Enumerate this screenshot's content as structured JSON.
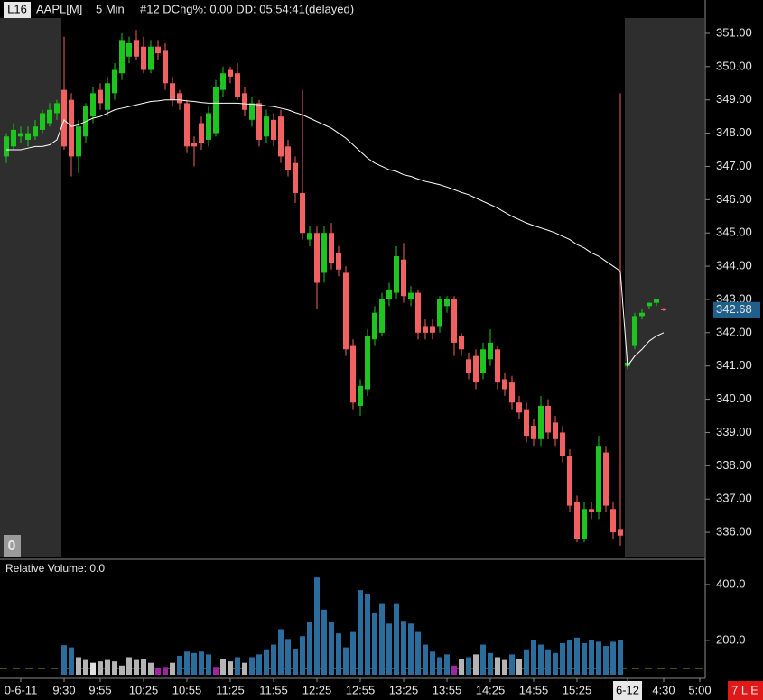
{
  "header": {
    "badge": "L16",
    "symbol": "AAPL[M]",
    "interval": "5 Min",
    "info": "#12 DChg%: 0.00 DD: 05:54:41(delayed)"
  },
  "footer": {
    "left_badge": "0",
    "right_badge": "7 L E"
  },
  "chart_data": {
    "type": "candlestick",
    "categories": [
      null,
      null,
      "0-6-11",
      null,
      null,
      null,
      null,
      null,
      "9:30",
      null,
      null,
      null,
      null,
      "9:55",
      null,
      null,
      null,
      null,
      null,
      "10:25",
      null,
      null,
      null,
      null,
      null,
      "10:55",
      null,
      null,
      null,
      null,
      null,
      "11:25",
      null,
      null,
      null,
      null,
      null,
      "11:55",
      null,
      null,
      null,
      null,
      null,
      "12:25",
      null,
      null,
      null,
      null,
      null,
      "12:55",
      null,
      null,
      null,
      null,
      null,
      "13:25",
      null,
      null,
      null,
      null,
      null,
      "13:55",
      null,
      null,
      null,
      null,
      null,
      "14:25",
      null,
      null,
      null,
      null,
      null,
      "14:55",
      null,
      null,
      null,
      null,
      null,
      "15:25",
      null,
      null,
      null,
      null,
      null,
      null,
      "6-12",
      null,
      null,
      null,
      null,
      "4:30",
      null,
      null,
      null,
      null,
      "5:00"
    ],
    "ohlc": [
      [
        347.3,
        348.0,
        347.1,
        347.9
      ],
      [
        347.6,
        348.3,
        347.5,
        348.1
      ],
      [
        347.9,
        348.2,
        347.7,
        348.0
      ],
      [
        347.8,
        348.2,
        347.6,
        348.0
      ],
      [
        347.9,
        348.4,
        347.8,
        348.2
      ],
      [
        348.1,
        348.7,
        348.0,
        348.6
      ],
      [
        348.3,
        348.9,
        348.2,
        348.7
      ],
      [
        348.6,
        349.0,
        348.4,
        348.9
      ],
      [
        349.3,
        350.9,
        347.5,
        347.6
      ],
      [
        349.0,
        349.2,
        346.7,
        347.3
      ],
      [
        347.3,
        348.4,
        346.8,
        348.2
      ],
      [
        347.9,
        348.9,
        347.7,
        348.8
      ],
      [
        348.5,
        349.4,
        348.3,
        349.2
      ],
      [
        349.3,
        349.5,
        348.7,
        348.9
      ],
      [
        348.7,
        349.7,
        348.5,
        349.5
      ],
      [
        349.2,
        350.1,
        349.0,
        349.9
      ],
      [
        349.8,
        351.0,
        349.6,
        350.8
      ],
      [
        350.3,
        350.9,
        350.1,
        350.7
      ],
      [
        350.8,
        351.1,
        350.2,
        350.3
      ],
      [
        350.6,
        350.9,
        349.8,
        349.9
      ],
      [
        349.9,
        350.8,
        349.8,
        350.6
      ],
      [
        350.6,
        350.8,
        350.2,
        350.4
      ],
      [
        350.5,
        350.7,
        349.3,
        349.5
      ],
      [
        349.5,
        349.7,
        348.8,
        349.0
      ],
      [
        349.2,
        349.3,
        348.7,
        348.9
      ],
      [
        348.9,
        349.0,
        347.4,
        347.6
      ],
      [
        347.7,
        347.9,
        347.0,
        347.6
      ],
      [
        348.3,
        348.5,
        347.5,
        347.7
      ],
      [
        347.8,
        348.8,
        347.6,
        348.6
      ],
      [
        348.0,
        349.6,
        347.9,
        349.4
      ],
      [
        349.3,
        350.0,
        349.1,
        349.8
      ],
      [
        349.9,
        350.0,
        349.5,
        349.7
      ],
      [
        349.8,
        350.1,
        349.0,
        349.1
      ],
      [
        349.2,
        349.4,
        348.5,
        348.7
      ],
      [
        348.4,
        349.1,
        348.2,
        348.9
      ],
      [
        348.9,
        349.0,
        347.6,
        347.8
      ],
      [
        347.9,
        348.7,
        347.7,
        348.5
      ],
      [
        348.4,
        348.6,
        347.6,
        347.8
      ],
      [
        348.5,
        348.7,
        347.1,
        347.3
      ],
      [
        347.6,
        347.8,
        346.7,
        346.9
      ],
      [
        347.1,
        347.3,
        345.9,
        346.2
      ],
      [
        346.2,
        349.3,
        344.8,
        345.0
      ],
      [
        344.8,
        345.2,
        344.6,
        345.0
      ],
      [
        345.0,
        345.2,
        342.7,
        343.5
      ],
      [
        343.8,
        345.2,
        343.5,
        345.0
      ],
      [
        345.0,
        345.3,
        343.9,
        344.1
      ],
      [
        344.4,
        344.6,
        343.7,
        343.9
      ],
      [
        343.8,
        344.0,
        341.3,
        341.5
      ],
      [
        341.6,
        341.8,
        339.7,
        339.9
      ],
      [
        339.8,
        340.6,
        339.5,
        340.4
      ],
      [
        340.3,
        342.1,
        340.1,
        341.9
      ],
      [
        341.8,
        342.8,
        341.6,
        342.6
      ],
      [
        342.0,
        343.2,
        341.9,
        343.0
      ],
      [
        343.0,
        343.5,
        342.8,
        343.3
      ],
      [
        343.2,
        344.6,
        343.0,
        344.3
      ],
      [
        344.2,
        344.7,
        342.9,
        343.1
      ],
      [
        343.0,
        343.4,
        342.8,
        343.2
      ],
      [
        343.2,
        343.3,
        341.8,
        342.0
      ],
      [
        342.2,
        342.4,
        341.8,
        342.0
      ],
      [
        342.2,
        342.4,
        341.8,
        342.0
      ],
      [
        342.2,
        343.1,
        342.0,
        343.0
      ],
      [
        342.8,
        343.1,
        342.6,
        343.0
      ],
      [
        343.0,
        343.1,
        341.3,
        341.7
      ],
      [
        341.9,
        342.0,
        341.3,
        341.5
      ],
      [
        341.2,
        341.4,
        340.6,
        340.8
      ],
      [
        341.3,
        341.5,
        340.3,
        340.5
      ],
      [
        340.8,
        341.7,
        340.6,
        341.5
      ],
      [
        341.2,
        342.1,
        341.0,
        341.7
      ],
      [
        341.5,
        341.6,
        340.3,
        340.5
      ],
      [
        340.6,
        340.8,
        340.1,
        340.3
      ],
      [
        340.5,
        340.7,
        339.7,
        339.9
      ],
      [
        339.9,
        340.1,
        339.4,
        339.6
      ],
      [
        339.7,
        339.9,
        338.7,
        338.9
      ],
      [
        339.2,
        339.4,
        338.6,
        338.8
      ],
      [
        338.8,
        340.1,
        338.6,
        339.8
      ],
      [
        339.8,
        340.0,
        338.8,
        339.0
      ],
      [
        339.3,
        339.5,
        338.6,
        338.8
      ],
      [
        339.0,
        339.2,
        338.1,
        338.3
      ],
      [
        338.3,
        338.5,
        336.6,
        336.8
      ],
      [
        336.9,
        337.1,
        335.7,
        335.8
      ],
      [
        335.8,
        336.9,
        335.7,
        336.7
      ],
      [
        336.7,
        336.9,
        336.4,
        336.6
      ],
      [
        336.6,
        338.9,
        336.4,
        338.6
      ],
      [
        338.4,
        338.6,
        336.6,
        336.8
      ],
      [
        336.7,
        336.9,
        335.8,
        336.0
      ],
      [
        336.1,
        349.2,
        335.6,
        335.9
      ],
      [
        341.0,
        341.2,
        340.9,
        341.1
      ],
      [
        341.6,
        342.6,
        341.5,
        342.5
      ],
      [
        342.5,
        342.7,
        342.4,
        342.6
      ],
      [
        342.8,
        342.9,
        342.7,
        342.9
      ],
      [
        342.9,
        343.0,
        342.8,
        343.0
      ],
      [
        342.7,
        342.75,
        342.65,
        342.68
      ],
      null,
      null,
      null,
      null,
      null
    ],
    "up_color": "#1ec51e",
    "down_color": "#f26161",
    "ylim": [
      335.27,
      351.46
    ],
    "yticks": [
      {
        "value": 336,
        "label": "336.00"
      },
      {
        "value": 337,
        "label": "337.00"
      },
      {
        "value": 338,
        "label": "338.00"
      },
      {
        "value": 339,
        "label": "339.00"
      },
      {
        "value": 340,
        "label": "340.00"
      },
      {
        "value": 341,
        "label": "341.00"
      },
      {
        "value": 342,
        "label": "342.00"
      },
      {
        "value": 343,
        "label": "343.00"
      },
      {
        "value": 344,
        "label": "344.00"
      },
      {
        "value": 345,
        "label": "345.00"
      },
      {
        "value": 346,
        "label": "346.00"
      },
      {
        "value": 347,
        "label": "347.00"
      },
      {
        "value": 348,
        "label": "348.00"
      },
      {
        "value": 349,
        "label": "349.00"
      },
      {
        "value": 350,
        "label": "350.00"
      },
      {
        "value": 351,
        "label": "351.00"
      }
    ],
    "last_price": 342.68,
    "last_price_color": "#1f5f8a",
    "average": {
      "color": "#ffffff",
      "values": [
        347.5,
        347.5,
        347.5,
        347.55,
        347.6,
        347.6,
        347.65,
        347.8,
        348.4,
        348.2,
        348.25,
        348.35,
        348.45,
        348.5,
        348.6,
        348.7,
        348.75,
        348.8,
        348.85,
        348.9,
        348.95,
        348.97,
        349.0,
        349.0,
        349.0,
        348.97,
        348.95,
        348.92,
        348.9,
        348.9,
        348.9,
        348.9,
        348.9,
        348.88,
        348.87,
        348.85,
        348.82,
        348.8,
        348.75,
        348.7,
        348.62,
        348.55,
        348.45,
        348.35,
        348.25,
        348.15,
        348.0,
        347.85,
        347.65,
        347.45,
        347.25,
        347.1,
        347.0,
        346.9,
        346.85,
        346.75,
        346.7,
        346.62,
        346.55,
        346.5,
        346.45,
        346.38,
        346.3,
        346.22,
        346.15,
        346.05,
        345.95,
        345.85,
        345.75,
        345.62,
        345.5,
        345.4,
        345.3,
        345.22,
        345.15,
        345.08,
        345.0,
        344.9,
        344.8,
        344.65,
        344.55,
        344.4,
        344.3,
        344.15,
        344.0,
        343.85,
        341.0,
        341.3,
        341.5,
        341.75,
        341.9,
        342.0,
        null,
        null,
        null,
        null,
        null
      ]
    },
    "volume": {
      "title": "Relative Volume: 0.0",
      "values": [
        null,
        null,
        null,
        null,
        null,
        null,
        null,
        null,
        183,
        175,
        140,
        130,
        120,
        125,
        130,
        125,
        110,
        140,
        130,
        135,
        120,
        100,
        105,
        120,
        145,
        160,
        155,
        160,
        150,
        105,
        135,
        125,
        140,
        120,
        140,
        150,
        165,
        185,
        240,
        205,
        170,
        215,
        265,
        425,
        310,
        265,
        225,
        175,
        230,
        380,
        365,
        300,
        330,
        260,
        330,
        270,
        260,
        230,
        185,
        160,
        140,
        150,
        110,
        135,
        140,
        150,
        185,
        155,
        140,
        130,
        150,
        135,
        165,
        200,
        185,
        165,
        155,
        190,
        200,
        210,
        190,
        200,
        195,
        180,
        195,
        200,
        null,
        null,
        null,
        null,
        null,
        null,
        null,
        null,
        null,
        null,
        null
      ],
      "colors": [
        null,
        null,
        null,
        null,
        null,
        null,
        null,
        null,
        "#2b6e9e",
        "#2b6e9e",
        "#b4b4b4",
        "#b4b4b4",
        "#e0e0e0",
        "#b4b4b4",
        "#b4b4b4",
        "#b4b4b4",
        "#b4b4b4",
        "#b4b4b4",
        "#b4b4b4",
        "#b4b4b4",
        "#b4b4b4",
        "#a0259e",
        "#a0259e",
        "#b4b4b4",
        "#2b6e9e",
        "#2b6e9e",
        "#2b6e9e",
        "#2b6e9e",
        "#2b6e9e",
        "#a0259e",
        "#b4b4b4",
        "#b4b4b4",
        "#2b6e9e",
        "#b4b4b4",
        "#2b6e9e",
        "#2b6e9e",
        "#2b6e9e",
        "#2b6e9e",
        "#2b6e9e",
        "#2b6e9e",
        "#2b6e9e",
        "#2b6e9e",
        "#2b6e9e",
        "#2b6e9e",
        "#2b6e9e",
        "#2b6e9e",
        "#2b6e9e",
        "#2b6e9e",
        "#2b6e9e",
        "#2b6e9e",
        "#2b6e9e",
        "#2b6e9e",
        "#2b6e9e",
        "#2b6e9e",
        "#2b6e9e",
        "#2b6e9e",
        "#2b6e9e",
        "#2b6e9e",
        "#2b6e9e",
        "#2b6e9e",
        "#2b6e9e",
        "#2b6e9e",
        "#a0259e",
        "#b4b4b4",
        "#2b6e9e",
        "#b4b4b4",
        "#2b6e9e",
        "#2b6e9e",
        "#b4b4b4",
        "#b4b4b4",
        "#2b6e9e",
        "#b4b4b4",
        "#2b6e9e",
        "#2b6e9e",
        "#2b6e9e",
        "#2b6e9e",
        "#2b6e9e",
        "#2b6e9e",
        "#2b6e9e",
        "#2b6e9e",
        "#2b6e9e",
        "#2b6e9e",
        "#2b6e9e",
        "#2b6e9e",
        "#2b6e9e",
        "#2b6e9e",
        null,
        null,
        null,
        null,
        null,
        null,
        null,
        null,
        null,
        null,
        null
      ],
      "reference": 100,
      "reference_color": "#d8c820",
      "ylim": [
        77,
        474
      ],
      "yticks": [
        {
          "value": 200,
          "label": "200.0"
        },
        {
          "value": 400,
          "label": "400.0"
        }
      ]
    }
  }
}
